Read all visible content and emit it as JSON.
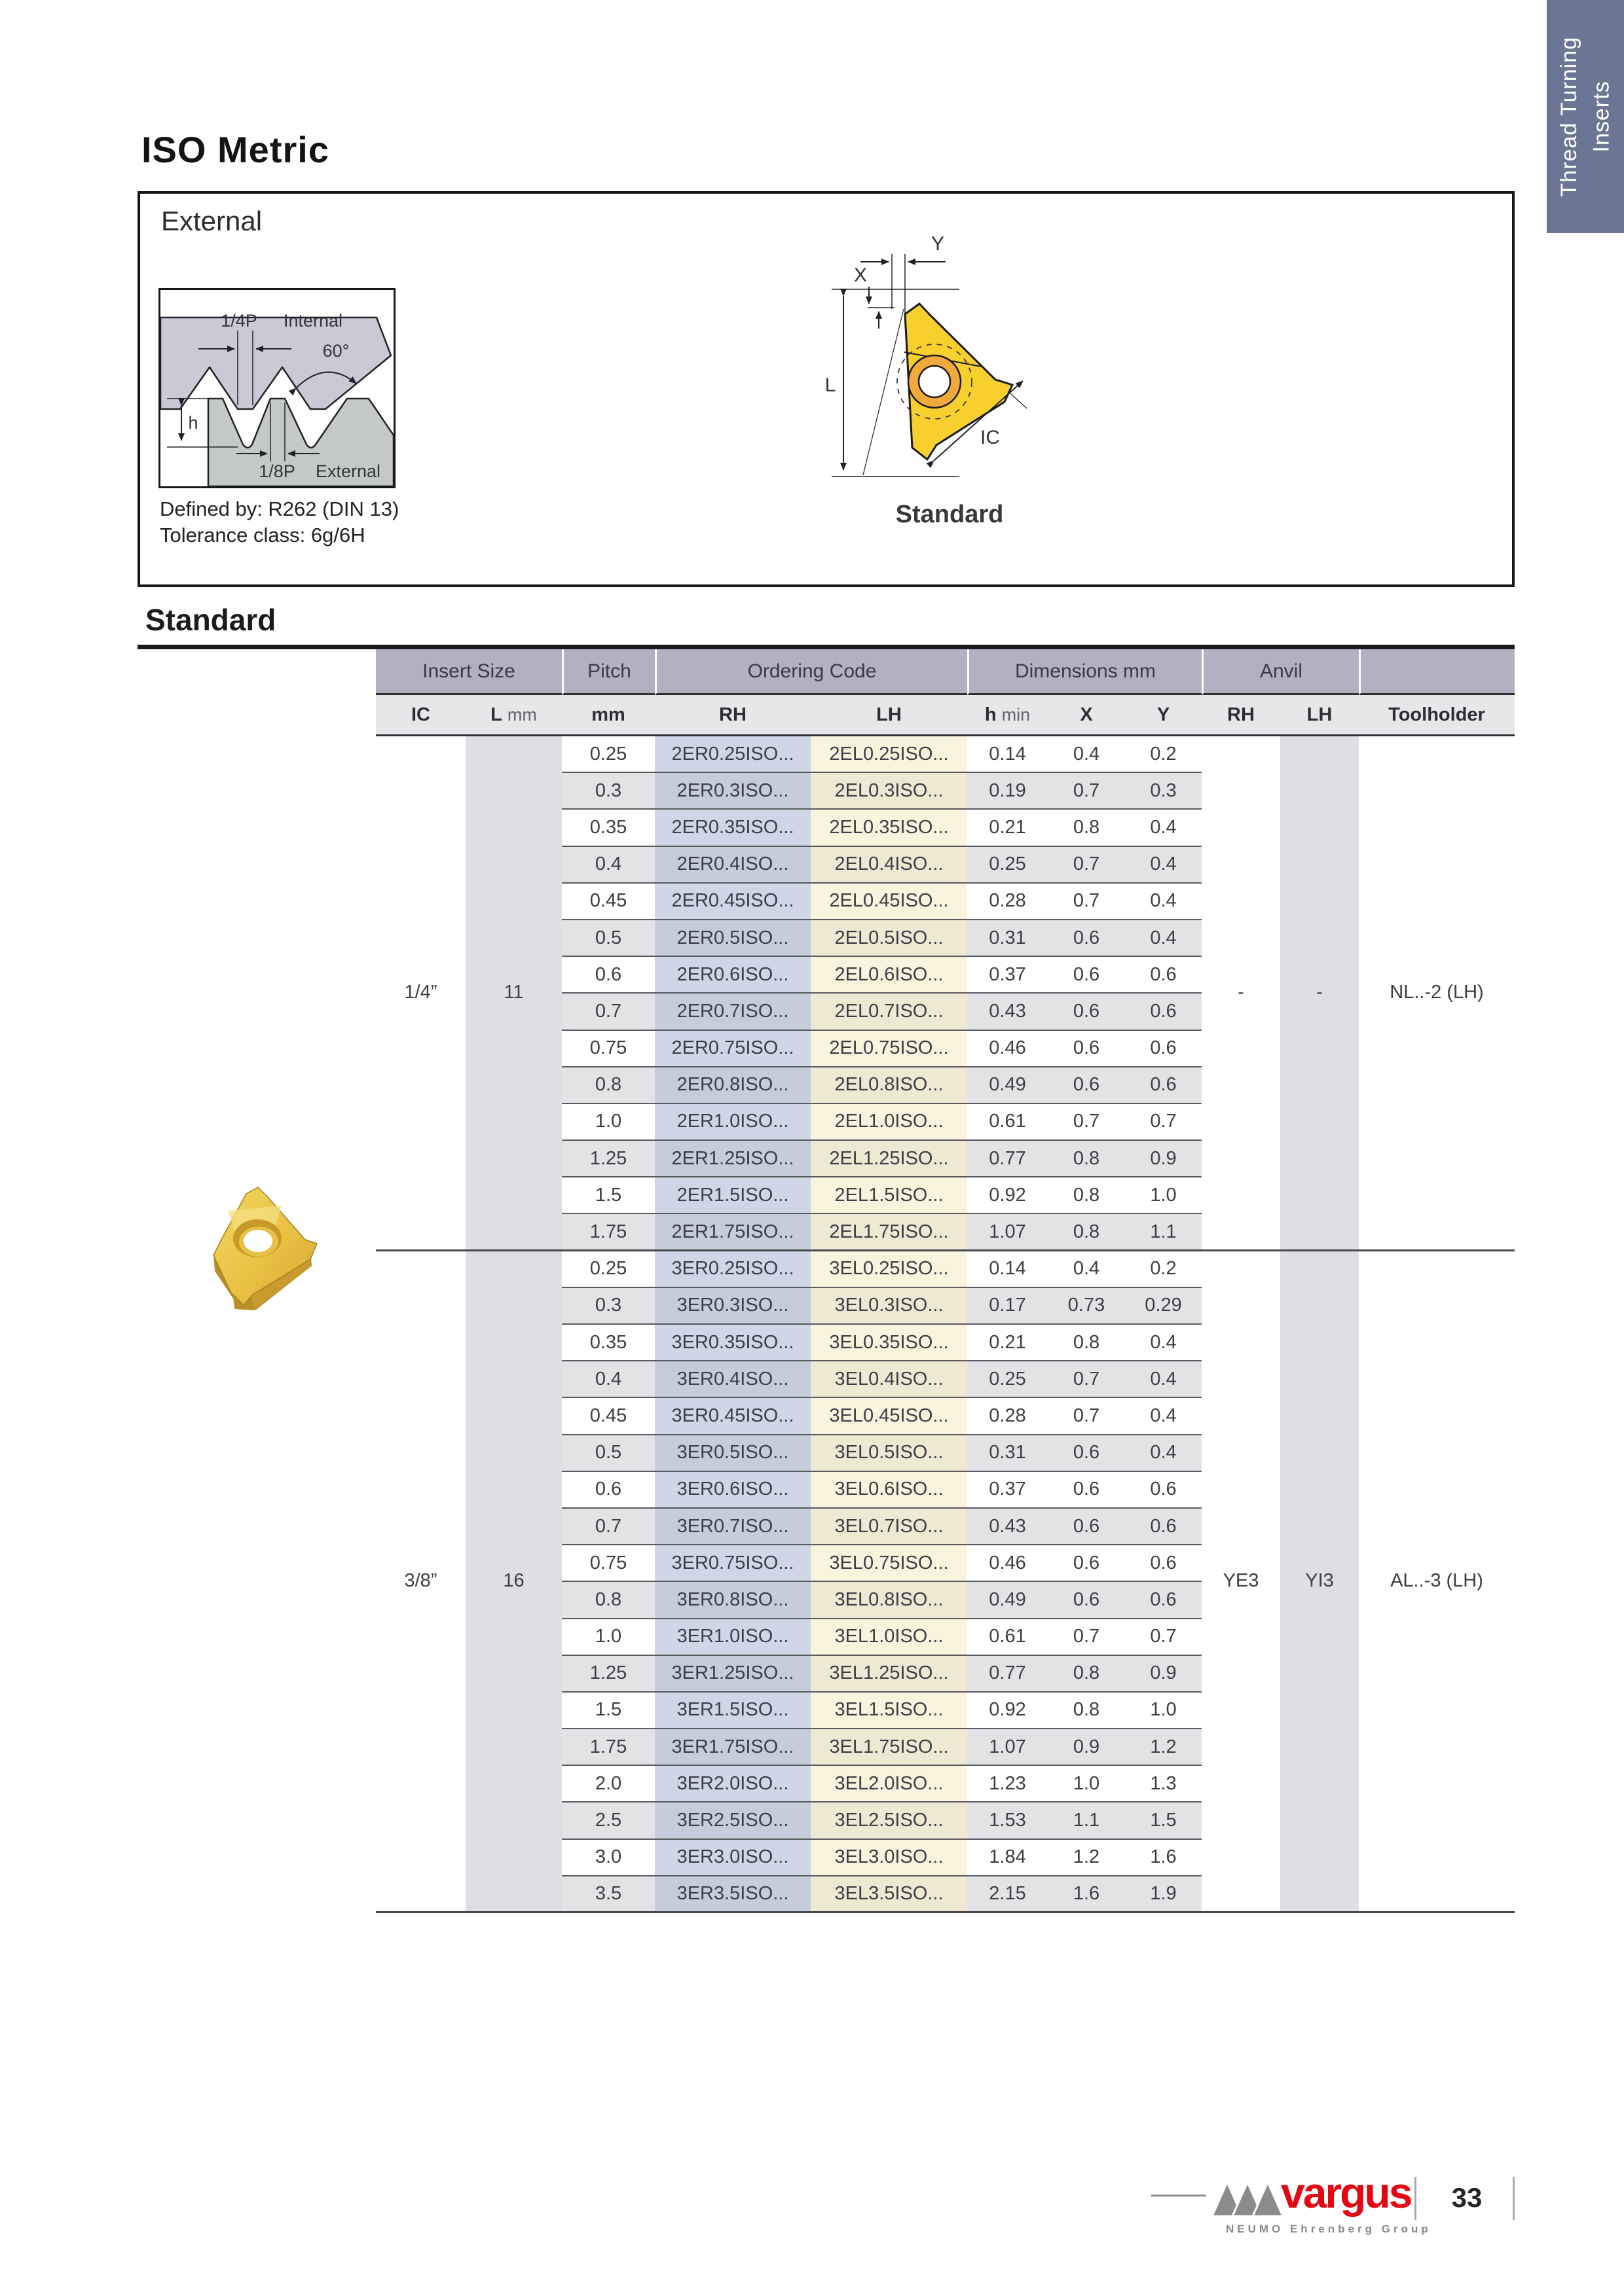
{
  "page": {
    "title": "ISO Metric",
    "section_title": "Standard",
    "page_number": "33"
  },
  "side_tab": {
    "text": "Thread Turning\nInserts"
  },
  "external_box": {
    "title": "External",
    "defined_by": "Defined by: R262 (DIN 13)",
    "tolerance": "Tolerance class: 6g/6H",
    "profile_labels": {
      "quarter_p": "1/4P",
      "internal": "Internal",
      "angle": "60°",
      "h": "h",
      "eighth_p": "1/8P",
      "external": "External"
    },
    "insert_diagram": {
      "labels": {
        "x": "X",
        "y": "Y",
        "l": "L",
        "ic": "IC"
      },
      "caption": "Standard"
    }
  },
  "table": {
    "group_headers": [
      "Insert Size",
      "Pitch",
      "Ordering Code",
      "Dimensions mm",
      "Anvil",
      ""
    ],
    "columns": [
      {
        "main": "IC"
      },
      {
        "main": "L",
        "sub": "mm"
      },
      {
        "main": "mm"
      },
      {
        "main": "RH"
      },
      {
        "main": "LH"
      },
      {
        "main": "h",
        "sub": "min"
      },
      {
        "main": "X"
      },
      {
        "main": "Y"
      },
      {
        "main": "RH"
      },
      {
        "main": "LH"
      },
      {
        "main": "Toolholder"
      }
    ],
    "groups": [
      {
        "ic": "1/4”",
        "l": "11",
        "anvil_rh": "-",
        "anvil_lh": "-",
        "toolholder": "NL..-2 (LH)",
        "rows": [
          [
            "0.25",
            "2ER0.25ISO...",
            "2EL0.25ISO...",
            "0.14",
            "0.4",
            "0.2"
          ],
          [
            "0.3",
            "2ER0.3ISO...",
            "2EL0.3ISO...",
            "0.19",
            "0.7",
            "0.3"
          ],
          [
            "0.35",
            "2ER0.35ISO...",
            "2EL0.35ISO...",
            "0.21",
            "0.8",
            "0.4"
          ],
          [
            "0.4",
            "2ER0.4ISO...",
            "2EL0.4ISO...",
            "0.25",
            "0.7",
            "0.4"
          ],
          [
            "0.45",
            "2ER0.45ISO...",
            "2EL0.45ISO...",
            "0.28",
            "0.7",
            "0.4"
          ],
          [
            "0.5",
            "2ER0.5ISO...",
            "2EL0.5ISO...",
            "0.31",
            "0.6",
            "0.4"
          ],
          [
            "0.6",
            "2ER0.6ISO...",
            "2EL0.6ISO...",
            "0.37",
            "0.6",
            "0.6"
          ],
          [
            "0.7",
            "2ER0.7ISO...",
            "2EL0.7ISO...",
            "0.43",
            "0.6",
            "0.6"
          ],
          [
            "0.75",
            "2ER0.75ISO...",
            "2EL0.75ISO...",
            "0.46",
            "0.6",
            "0.6"
          ],
          [
            "0.8",
            "2ER0.8ISO...",
            "2EL0.8ISO...",
            "0.49",
            "0.6",
            "0.6"
          ],
          [
            "1.0",
            "2ER1.0ISO...",
            "2EL1.0ISO...",
            "0.61",
            "0.7",
            "0.7"
          ],
          [
            "1.25",
            "2ER1.25ISO...",
            "2EL1.25ISO...",
            "0.77",
            "0.8",
            "0.9"
          ],
          [
            "1.5",
            "2ER1.5ISO...",
            "2EL1.5ISO...",
            "0.92",
            "0.8",
            "1.0"
          ],
          [
            "1.75",
            "2ER1.75ISO...",
            "2EL1.75ISO...",
            "1.07",
            "0.8",
            "1.1"
          ]
        ]
      },
      {
        "ic": "3/8”",
        "l": "16",
        "anvil_rh": "YE3",
        "anvil_lh": "YI3",
        "toolholder": "AL..-3 (LH)",
        "rows": [
          [
            "0.25",
            "3ER0.25ISO...",
            "3EL0.25ISO...",
            "0.14",
            "0.4",
            "0.2"
          ],
          [
            "0.3",
            "3ER0.3ISO...",
            "3EL0.3ISO...",
            "0.17",
            "0.73",
            "0.29"
          ],
          [
            "0.35",
            "3ER0.35ISO...",
            "3EL0.35ISO...",
            "0.21",
            "0.8",
            "0.4"
          ],
          [
            "0.4",
            "3ER0.4ISO...",
            "3EL0.4ISO...",
            "0.25",
            "0.7",
            "0.4"
          ],
          [
            "0.45",
            "3ER0.45ISO...",
            "3EL0.45ISO...",
            "0.28",
            "0.7",
            "0.4"
          ],
          [
            "0.5",
            "3ER0.5ISO...",
            "3EL0.5ISO...",
            "0.31",
            "0.6",
            "0.4"
          ],
          [
            "0.6",
            "3ER0.6ISO...",
            "3EL0.6ISO...",
            "0.37",
            "0.6",
            "0.6"
          ],
          [
            "0.7",
            "3ER0.7ISO...",
            "3EL0.7ISO...",
            "0.43",
            "0.6",
            "0.6"
          ],
          [
            "0.75",
            "3ER0.75ISO...",
            "3EL0.75ISO...",
            "0.46",
            "0.6",
            "0.6"
          ],
          [
            "0.8",
            "3ER0.8ISO...",
            "3EL0.8ISO...",
            "0.49",
            "0.6",
            "0.6"
          ],
          [
            "1.0",
            "3ER1.0ISO...",
            "3EL1.0ISO...",
            "0.61",
            "0.7",
            "0.7"
          ],
          [
            "1.25",
            "3ER1.25ISO...",
            "3EL1.25ISO...",
            "0.77",
            "0.8",
            "0.9"
          ],
          [
            "1.5",
            "3ER1.5ISO...",
            "3EL1.5ISO...",
            "0.92",
            "0.8",
            "1.0"
          ],
          [
            "1.75",
            "3ER1.75ISO...",
            "3EL1.75ISO...",
            "1.07",
            "0.9",
            "1.2"
          ],
          [
            "2.0",
            "3ER2.0ISO...",
            "3EL2.0ISO...",
            "1.23",
            "1.0",
            "1.3"
          ],
          [
            "2.5",
            "3ER2.5ISO...",
            "3EL2.5ISO...",
            "1.53",
            "1.1",
            "1.5"
          ],
          [
            "3.0",
            "3ER3.0ISO...",
            "3EL3.0ISO...",
            "1.84",
            "1.2",
            "1.6"
          ],
          [
            "3.5",
            "3ER3.5ISO...",
            "3EL3.5ISO...",
            "2.15",
            "1.6",
            "1.9"
          ]
        ]
      }
    ]
  },
  "footer": {
    "brand": "vargus",
    "brand_sub": "NEUMO Ehrenberg Group"
  },
  "colors": {
    "side_tab_bg": "#6b7694",
    "table_header_bg": "#b2b1c3",
    "rh_column_bg": "#cdd7e8",
    "lh_column_bg": "#f8f4dd",
    "row_alt_bg": "#e3e3e6",
    "brand_red": "#e30613",
    "insert_yellow": "#f7d02e"
  }
}
